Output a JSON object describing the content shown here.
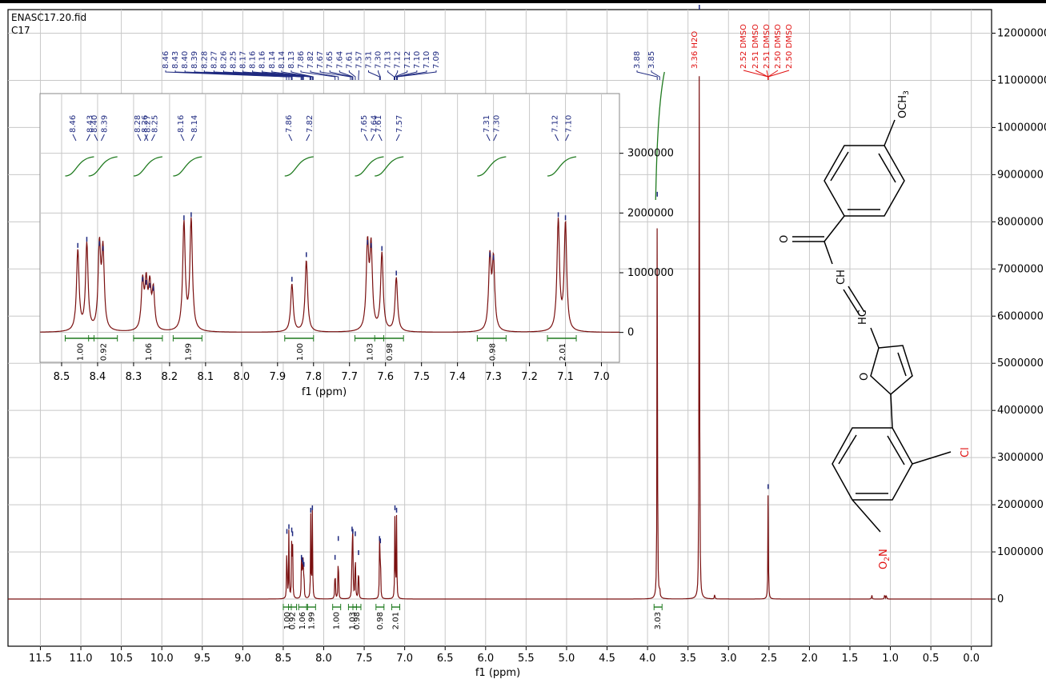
{
  "header": {
    "file": "ENASC17.20.fid",
    "sample": "C17"
  },
  "colors": {
    "spectrum": "#7a1010",
    "peak_label": "#1f2a80",
    "integral": "#1f7a1f",
    "solvent": "#e01010",
    "grid": "#c8c8c8"
  },
  "chart_data": [
    {
      "type": "line",
      "panel": "main",
      "xlabel": "f1 (ppm)",
      "xlim": [
        11.9,
        -0.25
      ],
      "x_ticks": [
        "11.5",
        "11.0",
        "10.5",
        "10.0",
        "9.5",
        "9.0",
        "8.5",
        "8.0",
        "7.5",
        "7.0",
        "6.5",
        "6.0",
        "5.5",
        "5.0",
        "4.5",
        "4.0",
        "3.5",
        "3.0",
        "2.5",
        "2.0",
        "1.5",
        "1.0",
        "0.5",
        "0.0"
      ],
      "ylim": [
        -1000000,
        12500000
      ],
      "y_ticks": [
        "12000000",
        "11000000",
        "10000000",
        "9000000",
        "8000000",
        "7000000",
        "6000000",
        "5000000",
        "4000000",
        "3000000",
        "2000000",
        "1000000",
        "0"
      ],
      "peaks": [
        {
          "x": 8.455,
          "y": 1350000
        },
        {
          "x": 8.43,
          "y": 1450000
        },
        {
          "x": 8.395,
          "y": 1380000
        },
        {
          "x": 8.385,
          "y": 1300000
        },
        {
          "x": 8.275,
          "y": 800000
        },
        {
          "x": 8.265,
          "y": 750000
        },
        {
          "x": 8.255,
          "y": 700000
        },
        {
          "x": 8.245,
          "y": 650000
        },
        {
          "x": 8.16,
          "y": 1800000
        },
        {
          "x": 8.14,
          "y": 1850000
        },
        {
          "x": 7.86,
          "y": 800000
        },
        {
          "x": 7.82,
          "y": 1200000
        },
        {
          "x": 7.65,
          "y": 1400000
        },
        {
          "x": 7.64,
          "y": 1350000
        },
        {
          "x": 7.61,
          "y": 1300000
        },
        {
          "x": 7.57,
          "y": 900000
        },
        {
          "x": 7.31,
          "y": 1200000
        },
        {
          "x": 7.3,
          "y": 1150000
        },
        {
          "x": 7.12,
          "y": 1850000
        },
        {
          "x": 7.1,
          "y": 1800000
        },
        {
          "x": 3.88,
          "y": 8500000
        },
        {
          "x": 3.85,
          "y": 200000
        },
        {
          "x": 3.36,
          "y": 12500000
        },
        {
          "x": 3.17,
          "y": 120000
        },
        {
          "x": 2.51,
          "y": 2300000
        },
        {
          "x": 1.23,
          "y": 100000
        },
        {
          "x": 1.07,
          "y": 120000
        },
        {
          "x": 1.05,
          "y": 100000
        }
      ],
      "peak_labels": [
        "8.46",
        "8.43",
        "8.40",
        "8.39",
        "8.28",
        "8.27",
        "8.26",
        "8.25",
        "8.17",
        "8.16",
        "8.16",
        "8.14",
        "8.14",
        "8.13",
        "7.86",
        "7.82",
        "7.67",
        "7.65",
        "7.64",
        "7.61",
        "7.57",
        "7.31",
        "7.30",
        "7.13",
        "7.12",
        "7.12",
        "7.10",
        "7.10",
        "7.09",
        "3.88",
        "3.85"
      ],
      "solvent_labels": [
        "3.36 H2O",
        "2.52 DMSO",
        "2.51 DMSO",
        "2.51 DMSO",
        "2.50 DMSO",
        "2.50 DMSO"
      ],
      "integrals": [
        {
          "x": 8.45,
          "value": "1.00"
        },
        {
          "x": 8.385,
          "value": "0.92"
        },
        {
          "x": 8.26,
          "value": "1.06"
        },
        {
          "x": 8.15,
          "value": "1.99"
        },
        {
          "x": 7.84,
          "value": "1.00"
        },
        {
          "x": 7.645,
          "value": "1.03"
        },
        {
          "x": 7.59,
          "value": "0.98"
        },
        {
          "x": 7.305,
          "value": "0.98"
        },
        {
          "x": 7.11,
          "value": "2.01"
        },
        {
          "x": 3.87,
          "value": "3.03"
        }
      ]
    },
    {
      "type": "line",
      "panel": "inset",
      "xlabel": "f1 (ppm)",
      "xlim": [
        8.56,
        6.95
      ],
      "x_ticks": [
        "8.5",
        "8.4",
        "8.3",
        "8.2",
        "8.1",
        "8.0",
        "7.9",
        "7.8",
        "7.7",
        "7.6",
        "7.5",
        "7.4",
        "7.3",
        "7.2",
        "7.1",
        "7.0"
      ],
      "ylim": [
        -500000,
        4000000
      ],
      "y_ticks": [
        "3000000",
        "2000000",
        "1000000",
        "0"
      ],
      "peak_labels": [
        "8.46",
        "8.43",
        "8.40",
        "8.39",
        "8.28",
        "8.27",
        "8.26",
        "8.25",
        "8.16",
        "8.14",
        "7.86",
        "7.82",
        "7.65",
        "7.64",
        "7.61",
        "7.57",
        "7.31",
        "7.30",
        "7.12",
        "7.10"
      ],
      "integrals": [
        {
          "x": 8.45,
          "value": "1.00"
        },
        {
          "x": 8.385,
          "value": "0.92"
        },
        {
          "x": 8.26,
          "value": "1.06"
        },
        {
          "x": 8.15,
          "value": "1.99"
        },
        {
          "x": 7.84,
          "value": "1.00"
        },
        {
          "x": 7.645,
          "value": "1.03"
        },
        {
          "x": 7.59,
          "value": "0.98"
        },
        {
          "x": 7.305,
          "value": "0.98"
        },
        {
          "x": 7.11,
          "value": "2.01"
        }
      ]
    }
  ],
  "structure": {
    "methoxy": "OCH",
    "methoxy_sub": "3",
    "carbonyl_o": "O",
    "ch": "CH",
    "hc": "HC",
    "furan_o": "O",
    "chloro": "Cl",
    "nitro": "O",
    "nitro_sub": "2",
    "nitro_n": "N"
  }
}
